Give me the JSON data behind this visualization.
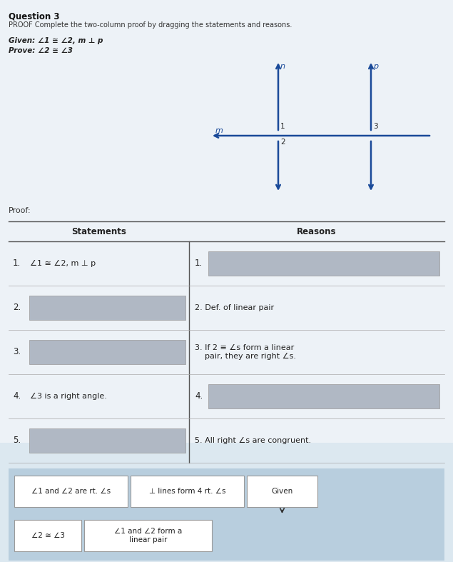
{
  "title_question": "Question 3",
  "proof_instruction": "PROOF Complete the two-column proof by dragging the statements and reasons.",
  "given_text": "Given: ∠1 ≅ ∠2, m ⊥ p",
  "prove_text": "Prove: ∠2 ≅ ∠3",
  "proof_label": "Proof:",
  "col1_header": "Statements",
  "col2_header": "Reasons",
  "bg_color": "#dce8f0",
  "card_bg": "#ffffff",
  "table_line_color": "#555555",
  "text_color": "#333333",
  "drag_bg_color": "#b8cede",
  "placeholder_color": "#b0b8c4"
}
